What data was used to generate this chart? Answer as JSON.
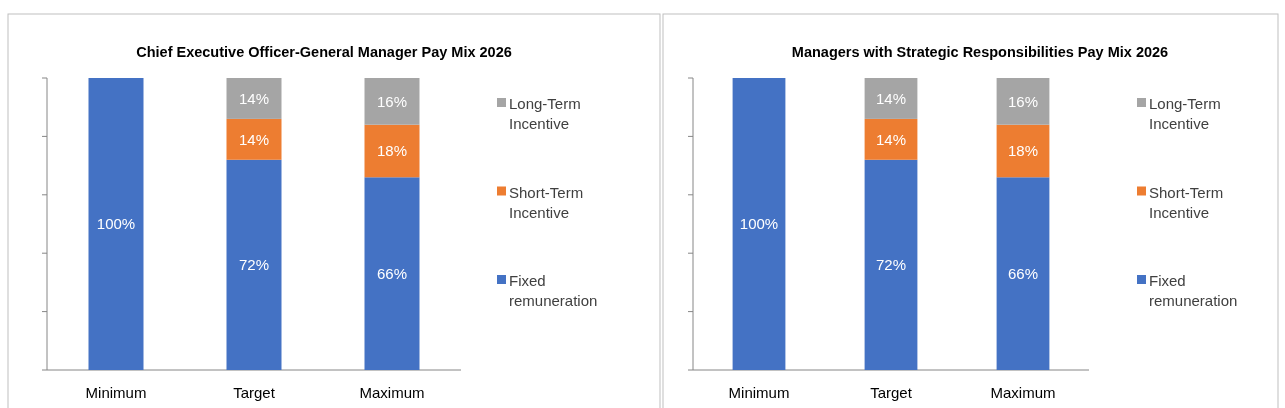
{
  "chart_data": [
    {
      "type": "bar",
      "title": "Chief Executive Officer-General Manager Pay Mix 2026",
      "categories": [
        "Minimum",
        "Target",
        "Maximum"
      ],
      "stacked": true,
      "ylim": [
        0,
        100
      ],
      "yticks": [
        {
          "value": 0,
          "label": null
        },
        {
          "value": 20,
          "label": null
        },
        {
          "value": 40,
          "label": null
        },
        {
          "value": 60,
          "label": null
        },
        {
          "value": 80,
          "label": null
        },
        {
          "value": 100,
          "label": null
        }
      ],
      "tick_labels": "x",
      "grid": false,
      "legend": "right",
      "series": [
        {
          "name": "Fixed remuneration",
          "color": "#4472c4",
          "values": [
            100,
            72,
            66
          ],
          "value_labels": [
            "100%",
            "72%",
            "66%"
          ]
        },
        {
          "name": "Short-Term Incentive",
          "color": "#ed7d31",
          "values": [
            null,
            14,
            18
          ],
          "value_labels": [
            null,
            "14%",
            "18%"
          ]
        },
        {
          "name": "Long-Term Incentive",
          "color": "#a5a5a5",
          "values": [
            null,
            14,
            16
          ],
          "value_labels": [
            null,
            "14%",
            "16%"
          ]
        }
      ]
    },
    {
      "type": "bar",
      "title": "Managers with Strategic Responsibilities Pay Mix 2026",
      "categories": [
        "Minimum",
        "Target",
        "Maximum"
      ],
      "stacked": true,
      "ylim": [
        0,
        100
      ],
      "yticks": [
        {
          "value": 0,
          "label": null
        },
        {
          "value": 20,
          "label": null
        },
        {
          "value": 40,
          "label": null
        },
        {
          "value": 60,
          "label": null
        },
        {
          "value": 80,
          "label": null
        },
        {
          "value": 100,
          "label": null
        }
      ],
      "tick_labels": "x",
      "grid": false,
      "legend": "right",
      "series": [
        {
          "name": "Fixed remuneration",
          "color": "#4472c4",
          "values": [
            100,
            72,
            66
          ],
          "value_labels": [
            "100%",
            "72%",
            "66%"
          ]
        },
        {
          "name": "Short-Term Incentive",
          "color": "#ed7d31",
          "values": [
            null,
            14,
            18
          ],
          "value_labels": [
            null,
            "14%",
            "18%"
          ]
        },
        {
          "name": "Long-Term Incentive",
          "color": "#a5a5a5",
          "values": [
            null,
            14,
            16
          ],
          "value_labels": [
            null,
            "14%",
            "16%"
          ]
        }
      ]
    }
  ]
}
